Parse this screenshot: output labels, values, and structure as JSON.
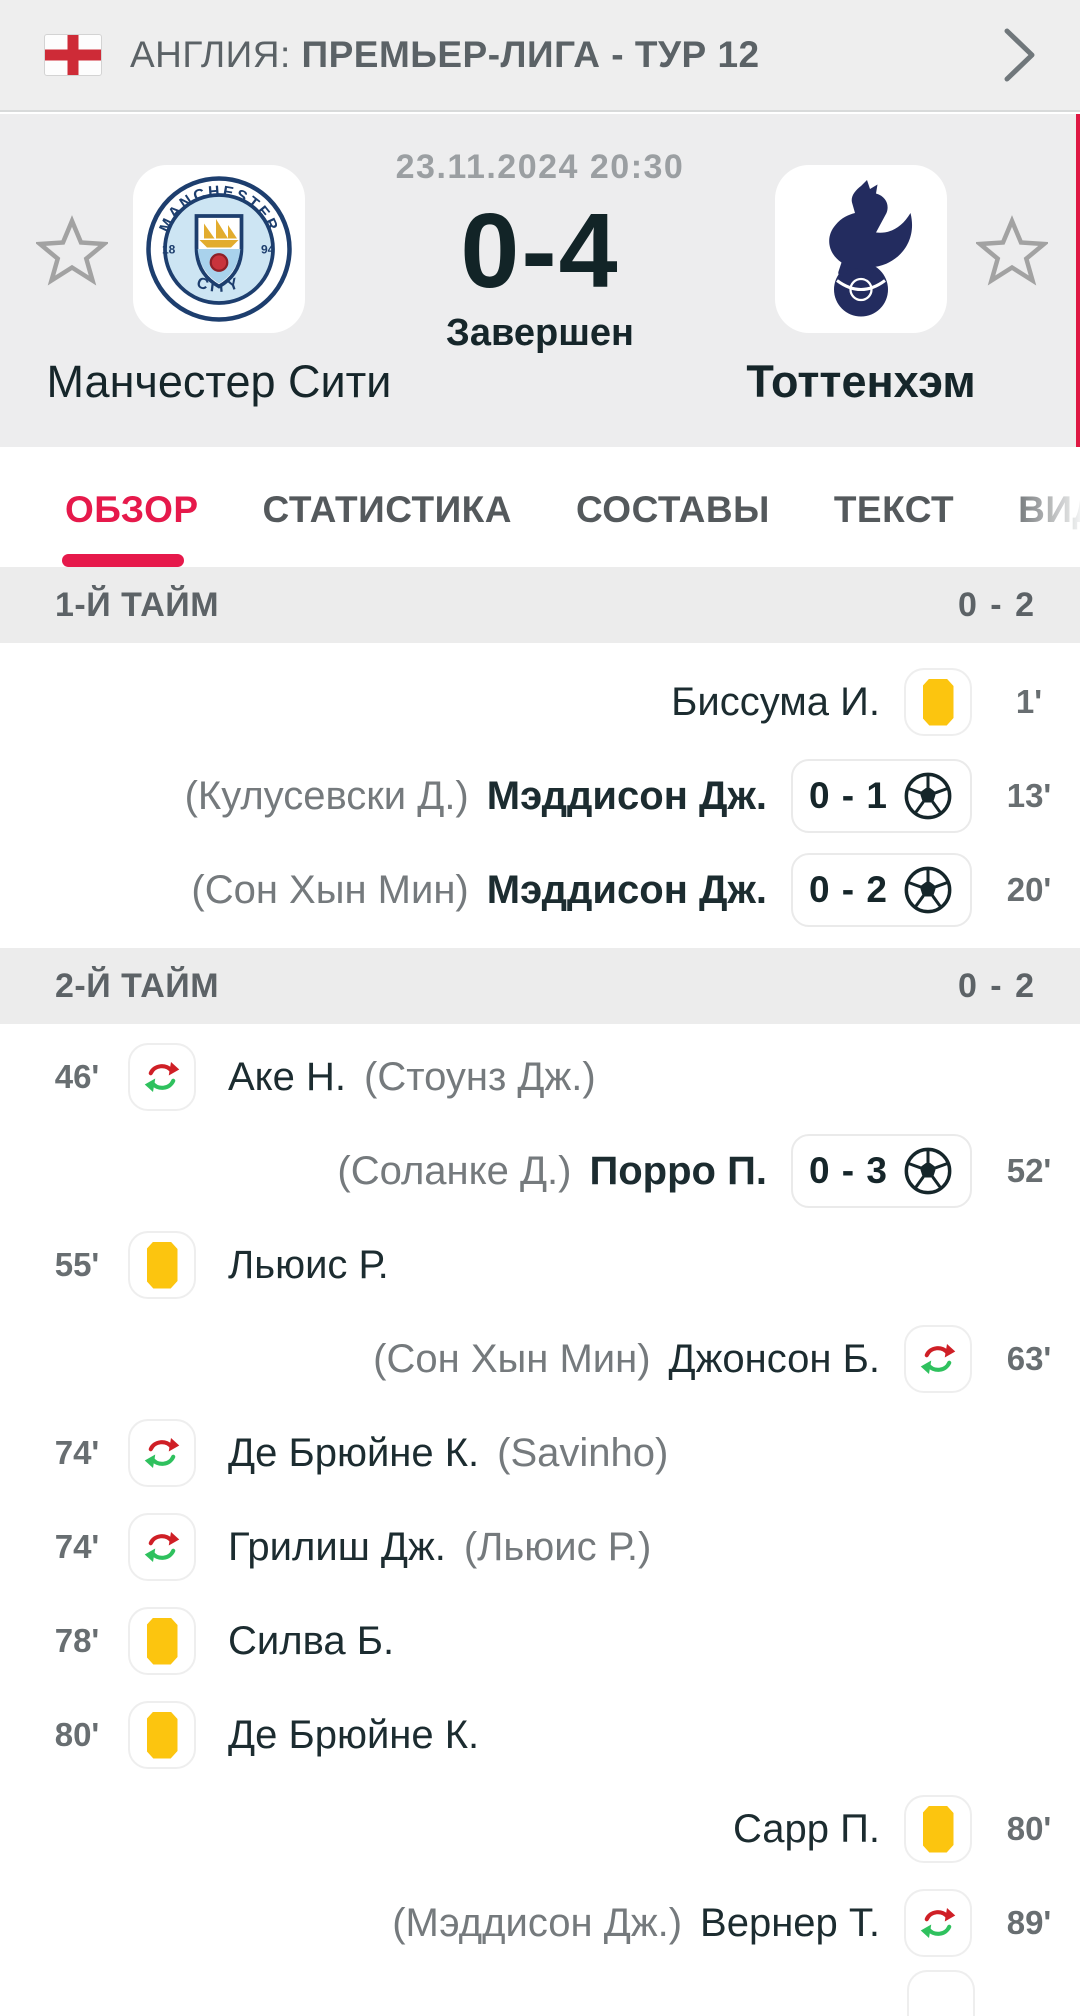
{
  "league_bar": {
    "country": "АНГЛИЯ:",
    "competition": "ПРЕМЬЕР-ЛИГА - ТУР 12"
  },
  "match": {
    "datetime": "23.11.2024 20:30",
    "score": "0-4",
    "status": "Завершен",
    "home_team": "Манчестер Сити",
    "away_team": "Тоттенхэм"
  },
  "tabs": [
    {
      "label": "ОБЗОР",
      "active": true
    },
    {
      "label": "СТАТИСТИКА",
      "active": false
    },
    {
      "label": "СОСТАВЫ",
      "active": false
    },
    {
      "label": "ТЕКСТ",
      "active": false
    },
    {
      "label": "ВИДЕО",
      "active": false
    }
  ],
  "periods": [
    {
      "title": "1-Й ТАЙМ",
      "score": "0 - 2",
      "group": "g1",
      "events": [
        {
          "side": "away",
          "type": "yellow-card",
          "player": "Биссума И.",
          "minute": "1'"
        },
        {
          "side": "away",
          "type": "goal",
          "assist": "(Кулусевски Д.)",
          "player": "Мэддисон Дж.",
          "score": "0 - 1",
          "minute": "13'"
        },
        {
          "side": "away",
          "type": "goal",
          "assist": "(Сон Хын Мин)",
          "player": "Мэддисон Дж.",
          "score": "0 - 2",
          "minute": "20'"
        }
      ]
    },
    {
      "title": "2-Й ТАЙМ",
      "score": "0 - 2",
      "group": "g2",
      "events": [
        {
          "side": "home",
          "type": "substitution",
          "player": "Аке Н.",
          "assist": "(Стоунз Дж.)",
          "minute": "46'"
        },
        {
          "side": "away",
          "type": "goal",
          "assist": "(Соланке Д.)",
          "player": "Порро П.",
          "score": "0 - 3",
          "minute": "52'"
        },
        {
          "side": "home",
          "type": "yellow-card",
          "player": "Льюис Р.",
          "minute": "55'"
        },
        {
          "side": "away",
          "type": "substitution",
          "assist": "(Сон Хын Мин)",
          "player": "Джонсон Б.",
          "minute": "63'"
        },
        {
          "side": "home",
          "type": "substitution",
          "player": "Де Брюйне К.",
          "assist": "(Savinho)",
          "minute": "74'"
        },
        {
          "side": "home",
          "type": "substitution",
          "player": "Грилиш Дж.",
          "assist": "(Льюис Р.)",
          "minute": "74'"
        },
        {
          "side": "home",
          "type": "yellow-card",
          "player": "Силва Б.",
          "minute": "78'"
        },
        {
          "side": "home",
          "type": "yellow-card",
          "player": "Де Брюйне К.",
          "minute": "80'"
        },
        {
          "side": "away",
          "type": "yellow-card",
          "player": "Сарр П.",
          "minute": "80'"
        },
        {
          "side": "away",
          "type": "substitution",
          "assist": "(Мэддисон Дж.)",
          "player": "Вернер Т.",
          "minute": "89'"
        }
      ]
    }
  ],
  "colors": {
    "accent_red": "#e6194b",
    "scrollbar_red": "#df1843",
    "yellow_card": "#fcc50f",
    "sub_in_green": "#2fc15e",
    "sub_out_red": "#cf1f26",
    "section_gray": "#ececec",
    "header_gray": "#ededee",
    "text_dark": "#16262a"
  }
}
